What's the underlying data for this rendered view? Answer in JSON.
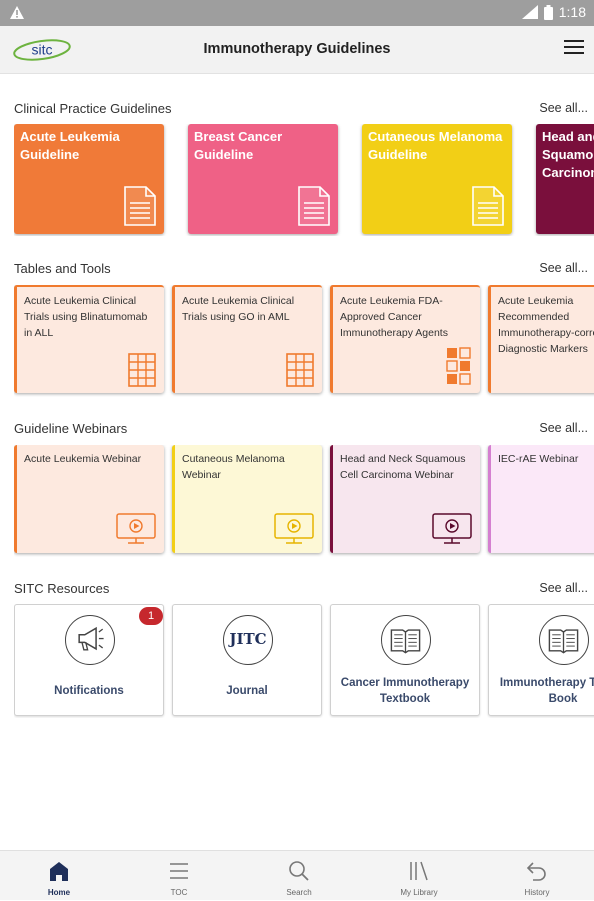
{
  "status_bar": {
    "time": "1:18"
  },
  "app_bar": {
    "logo_text": "sitc",
    "title": "Immunotherapy Guidelines"
  },
  "see_all_label": "See all...",
  "sections": {
    "clinical": {
      "title": "Clinical Practice Guidelines",
      "cards": [
        {
          "title": "Acute Leukemia Guideline",
          "color": "#f07a38"
        },
        {
          "title": "Breast Cancer Guideline",
          "color": "#ef6186"
        },
        {
          "title": "Cutaneous Melanoma Guideline",
          "color": "#f2cf16"
        },
        {
          "title": "Head and Neck Squamous Cell Carcinoma",
          "color": "#7a0f3c"
        }
      ]
    },
    "tools": {
      "title": "Tables and Tools",
      "cards": [
        {
          "title": "Acute Leukemia Clinical Trials using Blinatumomab in ALL",
          "icon": "table-icon"
        },
        {
          "title": "Acute Leukemia Clinical Trials using GO in AML",
          "icon": "table-icon"
        },
        {
          "title": "Acute Leukemia FDA-Approved Cancer Immunotherapy Agents",
          "icon": "checklist-icon"
        },
        {
          "title": "Acute Leukemia Recommended Immunotherapy-correlated Diagnostic Markers",
          "icon": "table-icon"
        }
      ]
    },
    "webinars": {
      "title": "Guideline Webinars",
      "cards": [
        {
          "title": "Acute Leukemia Webinar",
          "bg": "#fde9df",
          "accent": "#f07a2e",
          "icon_color": "#f07a2e"
        },
        {
          "title": "Cutaneous Melanoma Webinar",
          "bg": "#fdf8d6",
          "accent": "#f2cf16",
          "icon_color": "#e6b400"
        },
        {
          "title": "Head and Neck Squamous Cell Carcinoma Webinar",
          "bg": "#f7e6ee",
          "accent": "#7a0f3c",
          "icon_color": "#5a0a2c"
        },
        {
          "title": "IEC-rAE Webinar",
          "bg": "#fbe8f8",
          "accent": "#d47fd0",
          "icon_color": "#c060bb"
        }
      ]
    },
    "resources": {
      "title": "SITC Resources",
      "cards": [
        {
          "label": "Notifications",
          "icon": "megaphone-icon",
          "badge": "1"
        },
        {
          "label": "Journal",
          "icon": "jitc-logo",
          "logo_text": "JITC"
        },
        {
          "label": "Cancer Immunotherapy Textbook",
          "icon": "book-icon"
        },
        {
          "label": "Immunotherapy Toolkit Book",
          "icon": "book-icon"
        }
      ]
    }
  },
  "bottom_nav": [
    {
      "label": "Home",
      "icon": "home-icon",
      "active": true
    },
    {
      "label": "TOC",
      "icon": "toc-icon",
      "active": false
    },
    {
      "label": "Search",
      "icon": "search-icon",
      "active": false
    },
    {
      "label": "My Library",
      "icon": "library-icon",
      "active": false
    },
    {
      "label": "History",
      "icon": "history-icon",
      "active": false
    }
  ],
  "colors": {
    "accent_orange": "#f07a2e",
    "nav_active": "#1f2f5a",
    "badge_red": "#c6282d"
  }
}
